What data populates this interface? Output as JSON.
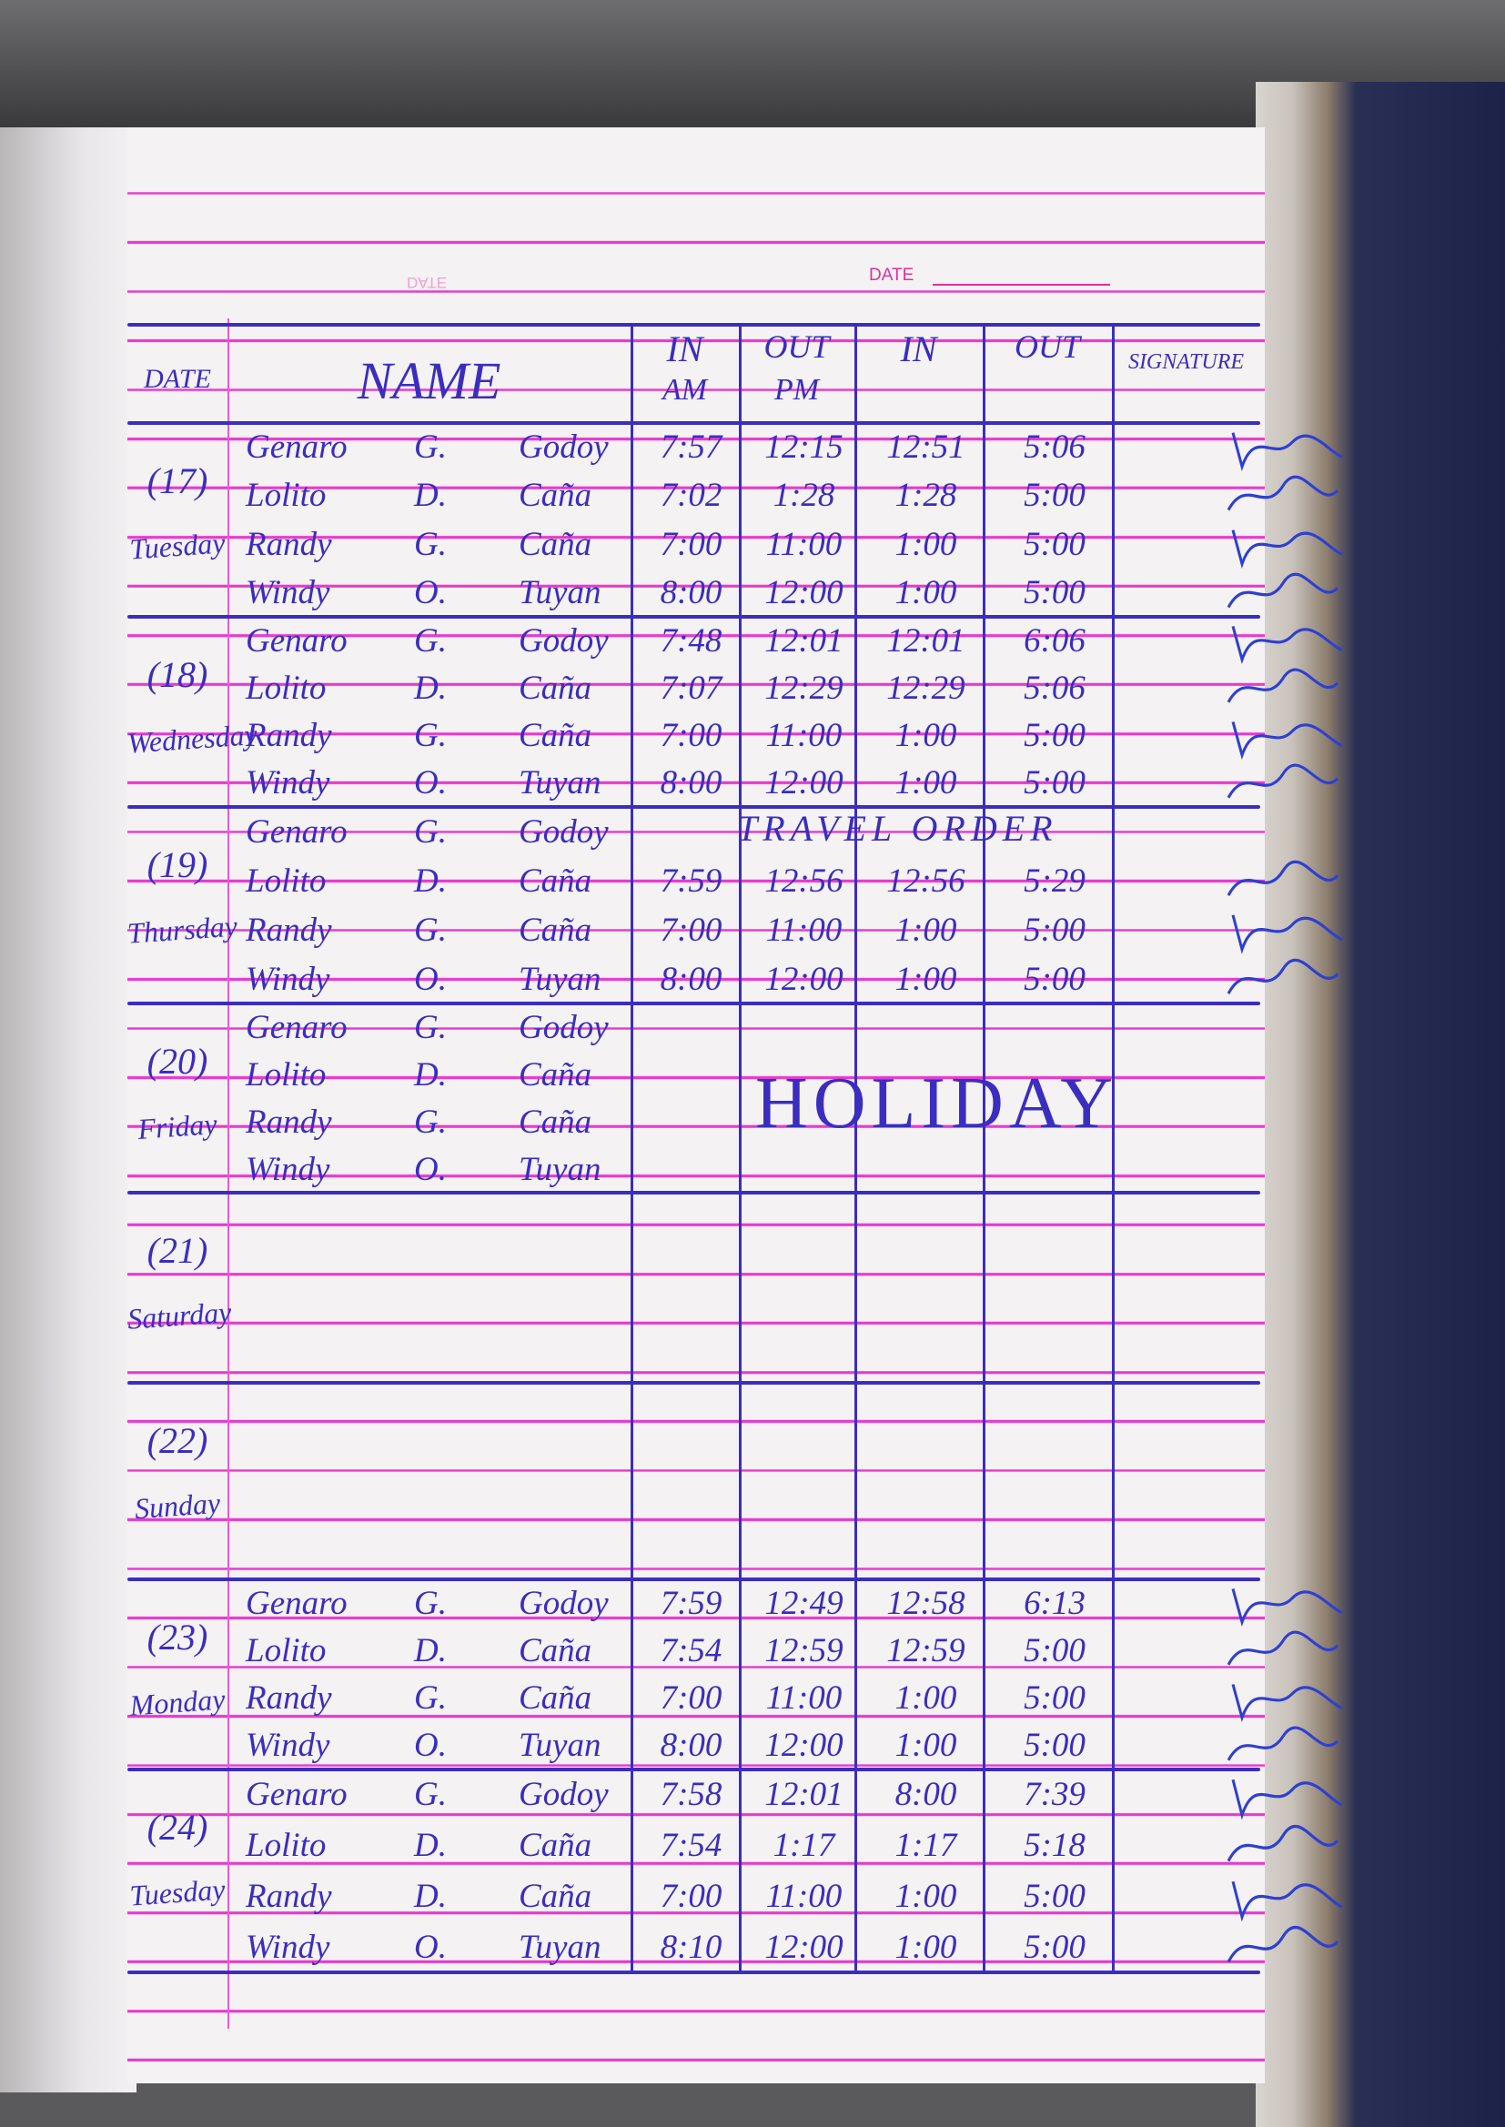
{
  "page": {
    "date_label": "DATE",
    "date_label_ghost": "DATE"
  },
  "header": {
    "date": "DATE",
    "name": "NAME",
    "in_am": "IN",
    "am": "AM",
    "out_pm": "OUT",
    "pm": "PM",
    "in_2": "IN",
    "out_2": "OUT",
    "signature": "SIGNATURE"
  },
  "ink_color": "#3b2dc0",
  "rule_color": "#e83ad0",
  "days": [
    {
      "date": "(17)",
      "weekday": "Tuesday",
      "note": "",
      "rows": [
        {
          "first": "Genaro",
          "mi": "G.",
          "last": "Godoy",
          "in_am": "7:57",
          "out_pm": "12:15",
          "in_2": "12:51",
          "out_2": "5:06"
        },
        {
          "first": "Lolito",
          "mi": "D.",
          "last": "Caña",
          "in_am": "7:02",
          "out_pm": "1:28",
          "in_2": "1:28",
          "out_2": "5:00"
        },
        {
          "first": "Randy",
          "mi": "G.",
          "last": "Caña",
          "in_am": "7:00",
          "out_pm": "11:00",
          "in_2": "1:00",
          "out_2": "5:00"
        },
        {
          "first": "Windy",
          "mi": "O.",
          "last": "Tuyan",
          "in_am": "8:00",
          "out_pm": "12:00",
          "in_2": "1:00",
          "out_2": "5:00"
        }
      ]
    },
    {
      "date": "(18)",
      "weekday": "Wednesday",
      "note": "",
      "rows": [
        {
          "first": "Genaro",
          "mi": "G.",
          "last": "Godoy",
          "in_am": "7:48",
          "out_pm": "12:01",
          "in_2": "12:01",
          "out_2": "6:06"
        },
        {
          "first": "Lolito",
          "mi": "D.",
          "last": "Caña",
          "in_am": "7:07",
          "out_pm": "12:29",
          "in_2": "12:29",
          "out_2": "5:06"
        },
        {
          "first": "Randy",
          "mi": "G.",
          "last": "Caña",
          "in_am": "7:00",
          "out_pm": "11:00",
          "in_2": "1:00",
          "out_2": "5:00"
        },
        {
          "first": "Windy",
          "mi": "O.",
          "last": "Tuyan",
          "in_am": "8:00",
          "out_pm": "12:00",
          "in_2": "1:00",
          "out_2": "5:00"
        }
      ]
    },
    {
      "date": "(19)",
      "weekday": "Thursday",
      "note": "TRAVEL ORDER",
      "rows": [
        {
          "first": "Genaro",
          "mi": "G.",
          "last": "Godoy",
          "in_am": "",
          "out_pm": "",
          "in_2": "",
          "out_2": ""
        },
        {
          "first": "Lolito",
          "mi": "D.",
          "last": "Caña",
          "in_am": "7:59",
          "out_pm": "12:56",
          "in_2": "12:56",
          "out_2": "5:29"
        },
        {
          "first": "Randy",
          "mi": "G.",
          "last": "Caña",
          "in_am": "7:00",
          "out_pm": "11:00",
          "in_2": "1:00",
          "out_2": "5:00"
        },
        {
          "first": "Windy",
          "mi": "O.",
          "last": "Tuyan",
          "in_am": "8:00",
          "out_pm": "12:00",
          "in_2": "1:00",
          "out_2": "5:00"
        }
      ]
    },
    {
      "date": "(20)",
      "weekday": "Friday",
      "note": "HOLIDAY",
      "rows": [
        {
          "first": "Genaro",
          "mi": "G.",
          "last": "Godoy",
          "in_am": "",
          "out_pm": "",
          "in_2": "",
          "out_2": ""
        },
        {
          "first": "Lolito",
          "mi": "D.",
          "last": "Caña",
          "in_am": "",
          "out_pm": "",
          "in_2": "",
          "out_2": ""
        },
        {
          "first": "Randy",
          "mi": "G.",
          "last": "Caña",
          "in_am": "",
          "out_pm": "",
          "in_2": "",
          "out_2": ""
        },
        {
          "first": "Windy",
          "mi": "O.",
          "last": "Tuyan",
          "in_am": "",
          "out_pm": "",
          "in_2": "",
          "out_2": ""
        }
      ]
    },
    {
      "date": "(21)",
      "weekday": "Saturday",
      "note": "",
      "rows": []
    },
    {
      "date": "(22)",
      "weekday": "Sunday",
      "note": "",
      "rows": []
    },
    {
      "date": "(23)",
      "weekday": "Monday",
      "note": "",
      "rows": [
        {
          "first": "Genaro",
          "mi": "G.",
          "last": "Godoy",
          "in_am": "7:59",
          "out_pm": "12:49",
          "in_2": "12:58",
          "out_2": "6:13"
        },
        {
          "first": "Lolito",
          "mi": "D.",
          "last": "Caña",
          "in_am": "7:54",
          "out_pm": "12:59",
          "in_2": "12:59",
          "out_2": "5:00"
        },
        {
          "first": "Randy",
          "mi": "G.",
          "last": "Caña",
          "in_am": "7:00",
          "out_pm": "11:00",
          "in_2": "1:00",
          "out_2": "5:00"
        },
        {
          "first": "Windy",
          "mi": "O.",
          "last": "Tuyan",
          "in_am": "8:00",
          "out_pm": "12:00",
          "in_2": "1:00",
          "out_2": "5:00"
        }
      ]
    },
    {
      "date": "(24)",
      "weekday": "Tuesday",
      "note": "",
      "rows": [
        {
          "first": "Genaro",
          "mi": "G.",
          "last": "Godoy",
          "in_am": "7:58",
          "out_pm": "12:01",
          "in_2": "8:00",
          "out_2": "7:39"
        },
        {
          "first": "Lolito",
          "mi": "D.",
          "last": "Caña",
          "in_am": "7:54",
          "out_pm": "1:17",
          "in_2": "1:17",
          "out_2": "5:18"
        },
        {
          "first": "Randy",
          "mi": "D.",
          "last": "Caña",
          "in_am": "7:00",
          "out_pm": "11:00",
          "in_2": "1:00",
          "out_2": "5:00"
        },
        {
          "first": "Windy",
          "mi": "O.",
          "last": "Tuyan",
          "in_am": "8:10",
          "out_pm": "12:00",
          "in_2": "1:00",
          "out_2": "5:00"
        }
      ]
    }
  ]
}
